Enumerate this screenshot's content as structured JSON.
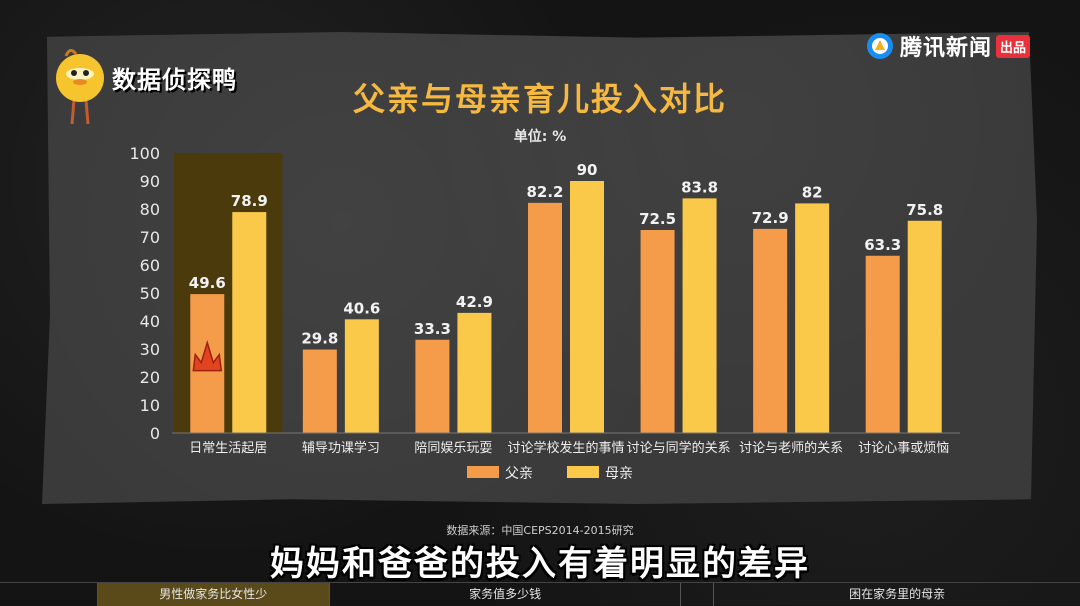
{
  "brand": {
    "name": "数据侦探鸭"
  },
  "tencent": {
    "name": "腾讯新闻",
    "badge": "出品"
  },
  "title": "父亲与母亲育儿投入对比",
  "unit": "单位: %",
  "source": "数据来源：中国CEPS2014-2015研究",
  "subtitle": "妈妈和爸爸的投入有着明显的差异",
  "bottom_nav": [
    {
      "label": "男性做家务比女性少",
      "active": true
    },
    {
      "label": "家务值多少钱",
      "active": false
    },
    {
      "label": "",
      "active": false
    },
    {
      "label": "困在家务里的母亲",
      "active": false
    }
  ],
  "colors": {
    "father": "#f59c4a",
    "mother": "#fbc94a",
    "highlight": "#4a3a0c",
    "title": "#f5b840"
  },
  "chart_data": {
    "type": "bar",
    "categories": [
      "日常生活起居",
      "辅导功课学习",
      "陪同娱乐玩耍",
      "讨论学校发生的事情",
      "讨论与同学的关系",
      "讨论与老师的关系",
      "讨论心事或烦恼"
    ],
    "series": [
      {
        "name": "父亲",
        "values": [
          49.6,
          29.8,
          33.3,
          82.2,
          72.5,
          72.9,
          63.3
        ]
      },
      {
        "name": "母亲",
        "values": [
          78.9,
          40.6,
          42.9,
          90,
          83.8,
          82,
          75.8
        ]
      }
    ],
    "ylim": [
      0,
      100
    ],
    "yticks": [
      0,
      10,
      20,
      30,
      40,
      50,
      60,
      70,
      80,
      90,
      100
    ],
    "highlight_category": "日常生活起居",
    "legend_position": "bottom",
    "grid": false
  }
}
